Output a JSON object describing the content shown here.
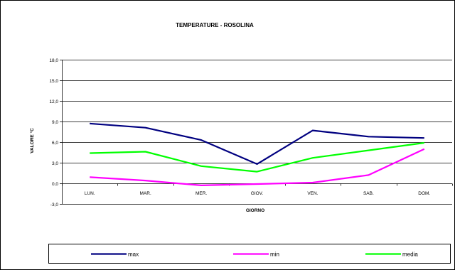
{
  "chart_data": {
    "type": "line",
    "title": "TEMPERATURE - ROSOLINA",
    "xlabel": "GIORNO",
    "ylabel": "VALORE °C",
    "categories": [
      "LUN.",
      "MAR.",
      "MER.",
      "GIOV.",
      "VEN.",
      "SAB.",
      "DOM."
    ],
    "ylim": [
      -3,
      18
    ],
    "yticks": [
      -3,
      0,
      3,
      6,
      9,
      12,
      15,
      18
    ],
    "ytick_labels": [
      "-3,0",
      "0,0",
      "3,0",
      "6,0",
      "9,0",
      "12,0",
      "15,0",
      "18,0"
    ],
    "grid": true,
    "legend_position": "bottom",
    "series": [
      {
        "name": "max",
        "color": "#000080",
        "values": [
          8.7,
          8.1,
          6.3,
          2.8,
          7.7,
          6.8,
          6.6
        ]
      },
      {
        "name": "min",
        "color": "#ff00ff",
        "values": [
          0.9,
          0.4,
          -0.3,
          -0.1,
          0.1,
          1.2,
          5.0
        ]
      },
      {
        "name": "media",
        "color": "#00ff00",
        "values": [
          4.4,
          4.6,
          2.5,
          1.7,
          3.7,
          4.8,
          5.9
        ]
      }
    ]
  }
}
